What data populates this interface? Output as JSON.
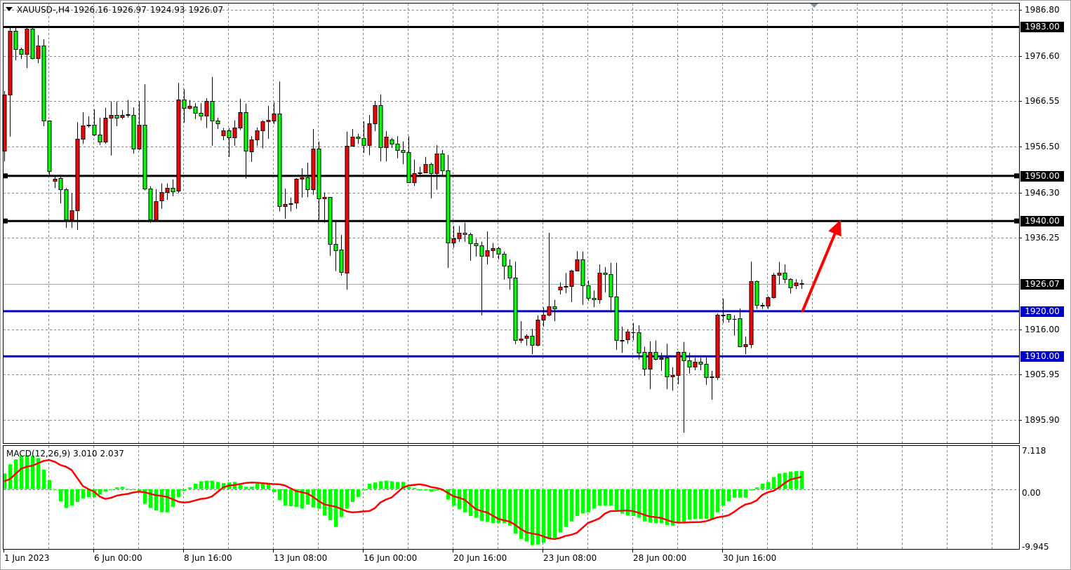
{
  "header": {
    "symbol": "XAUUSD-,H4",
    "open": "1926.16",
    "high": "1926.97",
    "low": "1924.93",
    "close": "1926.07"
  },
  "macd_header": {
    "label": "MACD(12,26,9)",
    "main": "3.010",
    "signal": "2.037"
  },
  "colors": {
    "bull": "#ff0000",
    "bear": "#00ff00",
    "grid": "#7a8796",
    "support_resistance_black": "#000000",
    "support_blue": "#0000cc",
    "macd_hist": "#00ff00",
    "macd_signal": "#ff0000",
    "arrow": "#ff0000"
  },
  "chart_data": [
    {
      "type": "candlestick",
      "title": "XAUUSD-,H4",
      "price_axis": {
        "range": [
          1895.9,
          1986.8
        ],
        "ticks": [
          "1986.80",
          "1976.60",
          "1966.55",
          "1956.50",
          "1946.30",
          "1936.25",
          "1916.00",
          "1905.95",
          "1895.90"
        ]
      },
      "time_axis": {
        "ticks": [
          "1 Jun 2023",
          "6 Jun 00:00",
          "8 Jun 16:00",
          "13 Jun 08:00",
          "16 Jun 00:00",
          "20 Jun 16:00",
          "23 Jun 08:00",
          "28 Jun 00:00",
          "30 Jun 16:00"
        ]
      },
      "grid": true,
      "current_price": "1926.07",
      "levels": [
        {
          "price": 1983.0,
          "label": "1983.00",
          "color": "#000000"
        },
        {
          "price": 1950.0,
          "label": "1950.00",
          "color": "#000000"
        },
        {
          "price": 1940.0,
          "label": "1940.00",
          "color": "#000000"
        },
        {
          "price": 1920.0,
          "label": "1920.00",
          "color": "#0000cc"
        },
        {
          "price": 1910.0,
          "label": "1910.00",
          "color": "#0000cc"
        }
      ],
      "arrow": {
        "from_price": 1920.0,
        "to_price": 1940.0,
        "color": "#ff0000",
        "direction": "up"
      },
      "candles_ohlc": [
        [
          1955.6,
          1968.8,
          1953.2,
          1968.0
        ],
        [
          1968.0,
          1983.1,
          1958.7,
          1982.1
        ],
        [
          1982.1,
          1982.8,
          1975.6,
          1978.1
        ],
        [
          1978.1,
          1978.4,
          1975.9,
          1977.0
        ],
        [
          1977.0,
          1983.1,
          1973.9,
          1982.6
        ],
        [
          1982.6,
          1983.1,
          1975.8,
          1976.1
        ],
        [
          1976.1,
          1981.2,
          1975.0,
          1978.9
        ],
        [
          1978.9,
          1980.3,
          1961.0,
          1962.3
        ],
        [
          1962.3,
          1962.3,
          1950.1,
          1951.1
        ],
        [
          1948.9,
          1950.1,
          1947.3,
          1949.4
        ],
        [
          1949.5,
          1949.8,
          1943.9,
          1947.0
        ],
        [
          1947.0,
          1947.3,
          1938.5,
          1940.3
        ],
        [
          1940.3,
          1946.1,
          1938.5,
          1942.4
        ],
        [
          1942.4,
          1961.9,
          1938.0,
          1958.2
        ],
        [
          1958.2,
          1964.1,
          1957.1,
          1961.2
        ],
        [
          1961.2,
          1963.2,
          1960.7,
          1961.3
        ],
        [
          1961.3,
          1964.7,
          1958.8,
          1959.1
        ],
        [
          1959.1,
          1962.9,
          1956.8,
          1957.6
        ],
        [
          1957.6,
          1965.1,
          1957.1,
          1962.9
        ],
        [
          1962.9,
          1966.5,
          1954.5,
          1963.5
        ],
        [
          1963.5,
          1966.5,
          1961.0,
          1962.9
        ],
        [
          1963.0,
          1964.6,
          1962.6,
          1963.5
        ],
        [
          1963.5,
          1966.8,
          1962.9,
          1963.6
        ],
        [
          1963.5,
          1965.2,
          1954.9,
          1956.0
        ],
        [
          1956.0,
          1966.5,
          1955.7,
          1961.3
        ],
        [
          1961.3,
          1970.3,
          1946.8,
          1947.2
        ],
        [
          1947.2,
          1947.7,
          1939.6,
          1940.3
        ],
        [
          1940.3,
          1947.0,
          1940.0,
          1944.4
        ],
        [
          1944.6,
          1948.3,
          1942.7,
          1946.4
        ],
        [
          1946.4,
          1948.3,
          1944.7,
          1947.3
        ],
        [
          1947.3,
          1949.2,
          1945.5,
          1946.6
        ],
        [
          1946.7,
          1970.6,
          1946.2,
          1966.9
        ],
        [
          1966.9,
          1969.2,
          1961.8,
          1965.1
        ],
        [
          1965.1,
          1966.8,
          1964.7,
          1965.5
        ],
        [
          1965.4,
          1966.1,
          1962.6,
          1963.9
        ],
        [
          1963.9,
          1966.1,
          1962.3,
          1963.3
        ],
        [
          1963.3,
          1967.2,
          1960.6,
          1966.6
        ],
        [
          1966.6,
          1971.9,
          1956.7,
          1962.3
        ],
        [
          1962.3,
          1962.9,
          1960.4,
          1961.6
        ],
        [
          1959.0,
          1960.6,
          1957.9,
          1960.1
        ],
        [
          1960.1,
          1960.6,
          1954.2,
          1958.5
        ],
        [
          1958.5,
          1962.3,
          1956.7,
          1960.7
        ],
        [
          1960.7,
          1967.1,
          1960.2,
          1964.1
        ],
        [
          1964.1,
          1966.0,
          1949.4,
          1955.6
        ],
        [
          1955.4,
          1958.8,
          1953.1,
          1958.1
        ],
        [
          1958.1,
          1960.7,
          1956.7,
          1960.1
        ],
        [
          1960.1,
          1962.3,
          1956.1,
          1962.1
        ],
        [
          1962.1,
          1965.5,
          1958.2,
          1962.4
        ],
        [
          1962.3,
          1966.3,
          1961.5,
          1963.8
        ],
        [
          1963.8,
          1970.9,
          1942.1,
          1943.3
        ],
        [
          1943.3,
          1947.2,
          1940.5,
          1943.8
        ],
        [
          1943.8,
          1945.2,
          1942.1,
          1943.9
        ],
        [
          1944.1,
          1949.5,
          1942.7,
          1949.4
        ],
        [
          1949.4,
          1951.7,
          1945.2,
          1949.7
        ],
        [
          1949.7,
          1952.9,
          1945.3,
          1947.0
        ],
        [
          1947.0,
          1960.4,
          1945.8,
          1956.0
        ],
        [
          1956.0,
          1957.6,
          1940.3,
          1945.0
        ],
        [
          1945.0,
          1946.3,
          1939.6,
          1945.3
        ],
        [
          1945.3,
          1945.3,
          1932.3,
          1934.9
        ],
        [
          1934.9,
          1939.9,
          1928.9,
          1933.5
        ],
        [
          1933.7,
          1936.9,
          1927.9,
          1928.7
        ],
        [
          1928.5,
          1959.8,
          1924.8,
          1956.7
        ],
        [
          1956.7,
          1960.4,
          1956.5,
          1958.7
        ],
        [
          1958.7,
          1959.3,
          1957.1,
          1958.4
        ],
        [
          1958.4,
          1962.1,
          1955.1,
          1956.8
        ],
        [
          1956.8,
          1963.5,
          1954.6,
          1961.6
        ],
        [
          1961.6,
          1966.6,
          1959.9,
          1965.7
        ],
        [
          1965.7,
          1968.0,
          1953.2,
          1956.4
        ],
        [
          1956.4,
          1959.9,
          1953.2,
          1958.7
        ],
        [
          1958.1,
          1958.4,
          1956.2,
          1957.1
        ],
        [
          1957.1,
          1958.8,
          1953.9,
          1955.7
        ],
        [
          1955.7,
          1957.6,
          1952.6,
          1955.3
        ],
        [
          1955.3,
          1958.8,
          1948.4,
          1948.5
        ],
        [
          1948.5,
          1953.6,
          1947.8,
          1950.6
        ],
        [
          1950.6,
          1952.0,
          1950.1,
          1950.7
        ],
        [
          1950.8,
          1954.2,
          1950.6,
          1952.6
        ],
        [
          1952.6,
          1952.9,
          1945.0,
          1950.6
        ],
        [
          1950.6,
          1956.8,
          1946.9,
          1954.9
        ],
        [
          1954.9,
          1955.7,
          1949.8,
          1951.2
        ],
        [
          1951.2,
          1954.6,
          1929.6,
          1935.2
        ],
        [
          1935.2,
          1938.9,
          1934.1,
          1936.1
        ],
        [
          1936.1,
          1938.9,
          1935.4,
          1937.4
        ],
        [
          1937.4,
          1939.6,
          1935.4,
          1937.1
        ],
        [
          1937.1,
          1937.4,
          1931.2,
          1935.1
        ],
        [
          1935.1,
          1936.0,
          1932.1,
          1934.6
        ],
        [
          1934.6,
          1935.4,
          1919.1,
          1932.3
        ],
        [
          1932.3,
          1937.7,
          1930.4,
          1933.5
        ],
        [
          1933.5,
          1935.1,
          1931.8,
          1934.0
        ],
        [
          1934.0,
          1934.3,
          1931.5,
          1932.7
        ],
        [
          1932.7,
          1933.2,
          1927.0,
          1930.1
        ],
        [
          1930.1,
          1931.5,
          1924.8,
          1927.5
        ],
        [
          1927.5,
          1931.0,
          1912.7,
          1913.6
        ],
        [
          1913.6,
          1917.8,
          1913.0,
          1914.0
        ],
        [
          1914.1,
          1914.9,
          1912.4,
          1914.6
        ],
        [
          1914.6,
          1916.1,
          1910.5,
          1912.5
        ],
        [
          1912.5,
          1919.1,
          1912.2,
          1918.1
        ],
        [
          1918.1,
          1920.8,
          1916.6,
          1919.2
        ],
        [
          1919.2,
          1937.4,
          1918.9,
          1921.1
        ],
        [
          1921.1,
          1922.5,
          1917.8,
          1920.6
        ],
        [
          1924.8,
          1926.4,
          1923.7,
          1925.4
        ],
        [
          1925.4,
          1928.5,
          1924.0,
          1925.6
        ],
        [
          1925.6,
          1929.2,
          1922.0,
          1929.0
        ],
        [
          1929.0,
          1933.3,
          1929.0,
          1931.5
        ],
        [
          1931.5,
          1933.2,
          1921.4,
          1925.7
        ],
        [
          1925.7,
          1926.8,
          1922.3,
          1922.9
        ],
        [
          1922.9,
          1924.6,
          1920.9,
          1922.6
        ],
        [
          1922.6,
          1930.4,
          1921.7,
          1928.5
        ],
        [
          1928.5,
          1929.8,
          1924.2,
          1928.2
        ],
        [
          1928.2,
          1930.7,
          1919.7,
          1923.3
        ],
        [
          1923.3,
          1930.7,
          1911.4,
          1913.6
        ],
        [
          1913.6,
          1916.6,
          1910.8,
          1913.5
        ],
        [
          1913.8,
          1916.0,
          1912.8,
          1915.5
        ],
        [
          1915.3,
          1917.4,
          1913.6,
          1915.4
        ],
        [
          1915.3,
          1916.9,
          1909.3,
          1910.8
        ],
        [
          1911.0,
          1912.1,
          1905.7,
          1907.3
        ],
        [
          1907.3,
          1913.3,
          1902.7,
          1911.0
        ],
        [
          1911.0,
          1913.5,
          1909.1,
          1909.4
        ],
        [
          1909.4,
          1910.8,
          1906.8,
          1909.7
        ],
        [
          1909.7,
          1912.8,
          1902.7,
          1905.6
        ],
        [
          1905.6,
          1907.6,
          1902.4,
          1905.9
        ],
        [
          1905.9,
          1911.1,
          1903.8,
          1911.0
        ],
        [
          1911.0,
          1913.2,
          1893.1,
          1909.1
        ],
        [
          1909.1,
          1910.8,
          1906.2,
          1907.7
        ],
        [
          1907.7,
          1909.7,
          1906.9,
          1908.8
        ],
        [
          1908.8,
          1909.7,
          1906.9,
          1908.3
        ],
        [
          1908.3,
          1909.9,
          1903.7,
          1905.4
        ],
        [
          1905.4,
          1906.8,
          1900.4,
          1905.5
        ],
        [
          1905.4,
          1919.5,
          1904.8,
          1919.2
        ],
        [
          1919.2,
          1922.8,
          1917.4,
          1919.1
        ],
        [
          1919.4,
          1919.4,
          1917.5,
          1918.3
        ],
        [
          1918.3,
          1919.1,
          1914.6,
          1918.2
        ],
        [
          1918.4,
          1920.6,
          1912.0,
          1912.2
        ],
        [
          1912.2,
          1914.4,
          1910.5,
          1912.7
        ],
        [
          1912.7,
          1931.0,
          1911.8,
          1926.7
        ],
        [
          1926.7,
          1926.8,
          1920.5,
          1921.4
        ],
        [
          1921.4,
          1921.9,
          1920.5,
          1921.3
        ],
        [
          1921.2,
          1923.3,
          1920.5,
          1923.1
        ],
        [
          1923.1,
          1928.5,
          1922.8,
          1928.1
        ],
        [
          1928.1,
          1930.9,
          1925.9,
          1928.5
        ],
        [
          1928.5,
          1930.4,
          1926.2,
          1927.1
        ],
        [
          1927.1,
          1927.3,
          1923.9,
          1925.3
        ],
        [
          1925.7,
          1927.1,
          1924.9,
          1926.4
        ],
        [
          1926.16,
          1926.97,
          1924.93,
          1926.07
        ]
      ]
    },
    {
      "type": "bar+line",
      "title": "MACD(12,26,9)",
      "y_axis": {
        "range": [
          -9.945,
          7.118
        ],
        "ticks": [
          "7.118",
          "0.00",
          "-9.945"
        ]
      },
      "histogram": [
        2.6,
        4.1,
        4.9,
        5.5,
        5.6,
        5.5,
        5.1,
        3.2,
        1.5,
        0.0,
        -2.0,
        -3.1,
        -2.7,
        -2.1,
        -1.5,
        -1.3,
        -1.3,
        -0.9,
        -0.4,
        -0.1,
        0.3,
        0.4,
        0.05,
        0.05,
        -0.3,
        -2.4,
        -3.1,
        -3.5,
        -3.8,
        -3.8,
        -2.9,
        -1.3,
        -0.3,
        0.3,
        0.9,
        1.3,
        1.4,
        1.4,
        1.2,
        1.0,
        1.1,
        1.2,
        0.7,
        0.4,
        0.4,
        0.9,
        0.9,
        1.0,
        -0.5,
        -1.8,
        -2.7,
        -2.8,
        -2.9,
        -3.2,
        -2.5,
        -3.0,
        -3.2,
        -4.3,
        -5.1,
        -6.2,
        -4.6,
        -3.2,
        -2.1,
        -1.3,
        -0.2,
        0.9,
        1.1,
        1.3,
        1.4,
        1.3,
        1.2,
        1.2,
        0.4,
        0.2,
        -0.2,
        -0.2,
        -0.4,
        -0.2,
        -0.3,
        -1.7,
        -2.7,
        -3.3,
        -3.8,
        -4.4,
        -4.7,
        -5.2,
        -5.4,
        -5.6,
        -5.6,
        -5.6,
        -6.0,
        -7.3,
        -8.2,
        -8.6,
        -9.2,
        -9.1,
        -8.8,
        -8.2,
        -8.0,
        -7.1,
        -6.2,
        -5.3,
        -4.4,
        -4.0,
        -3.8,
        -3.2,
        -2.7,
        -2.7,
        -2.7,
        -3.4,
        -4.0,
        -4.3,
        -4.4,
        -4.7,
        -5.3,
        -5.5,
        -5.6,
        -5.6,
        -5.9,
        -6.0,
        -5.6,
        -5.4,
        -5.0,
        -4.9,
        -4.9,
        -4.9,
        -4.9,
        -3.8,
        -2.7,
        -2.0,
        -1.4,
        -1.4,
        -1.4,
        -0.2,
        0.3,
        0.9,
        1.2,
        2.0,
        2.6,
        2.7,
        2.9,
        3.0,
        3.01
      ],
      "signal_keypoints": [
        [
          0,
          1.3
        ],
        [
          4,
          3.7
        ],
        [
          8,
          4.8
        ],
        [
          11,
          3.7
        ],
        [
          15,
          0.0
        ],
        [
          18,
          -1.6
        ],
        [
          21,
          -0.9
        ],
        [
          24,
          -0.4
        ],
        [
          28,
          -1.1
        ],
        [
          32,
          -2.2
        ],
        [
          36,
          -1.5
        ],
        [
          40,
          0.6
        ],
        [
          44,
          1.1
        ],
        [
          49,
          0.8
        ],
        [
          53,
          -0.5
        ],
        [
          58,
          -2.7
        ],
        [
          62,
          -3.8
        ],
        [
          65,
          -3.6
        ],
        [
          68,
          -1.7
        ],
        [
          72,
          0.6
        ],
        [
          74,
          0.8
        ],
        [
          77,
          0.2
        ],
        [
          81,
          -1.4
        ],
        [
          85,
          -3.6
        ],
        [
          89,
          -5.1
        ],
        [
          94,
          -7.3
        ],
        [
          98,
          -8.2
        ],
        [
          101,
          -7.5
        ],
        [
          105,
          -5.2
        ],
        [
          108,
          -3.6
        ],
        [
          111,
          -3.5
        ],
        [
          116,
          -4.6
        ],
        [
          120,
          -5.5
        ],
        [
          124,
          -5.4
        ],
        [
          128,
          -4.5
        ],
        [
          133,
          -2.3
        ],
        [
          136,
          -0.5
        ],
        [
          141,
          1.8
        ],
        [
          142,
          2.037
        ]
      ]
    }
  ]
}
